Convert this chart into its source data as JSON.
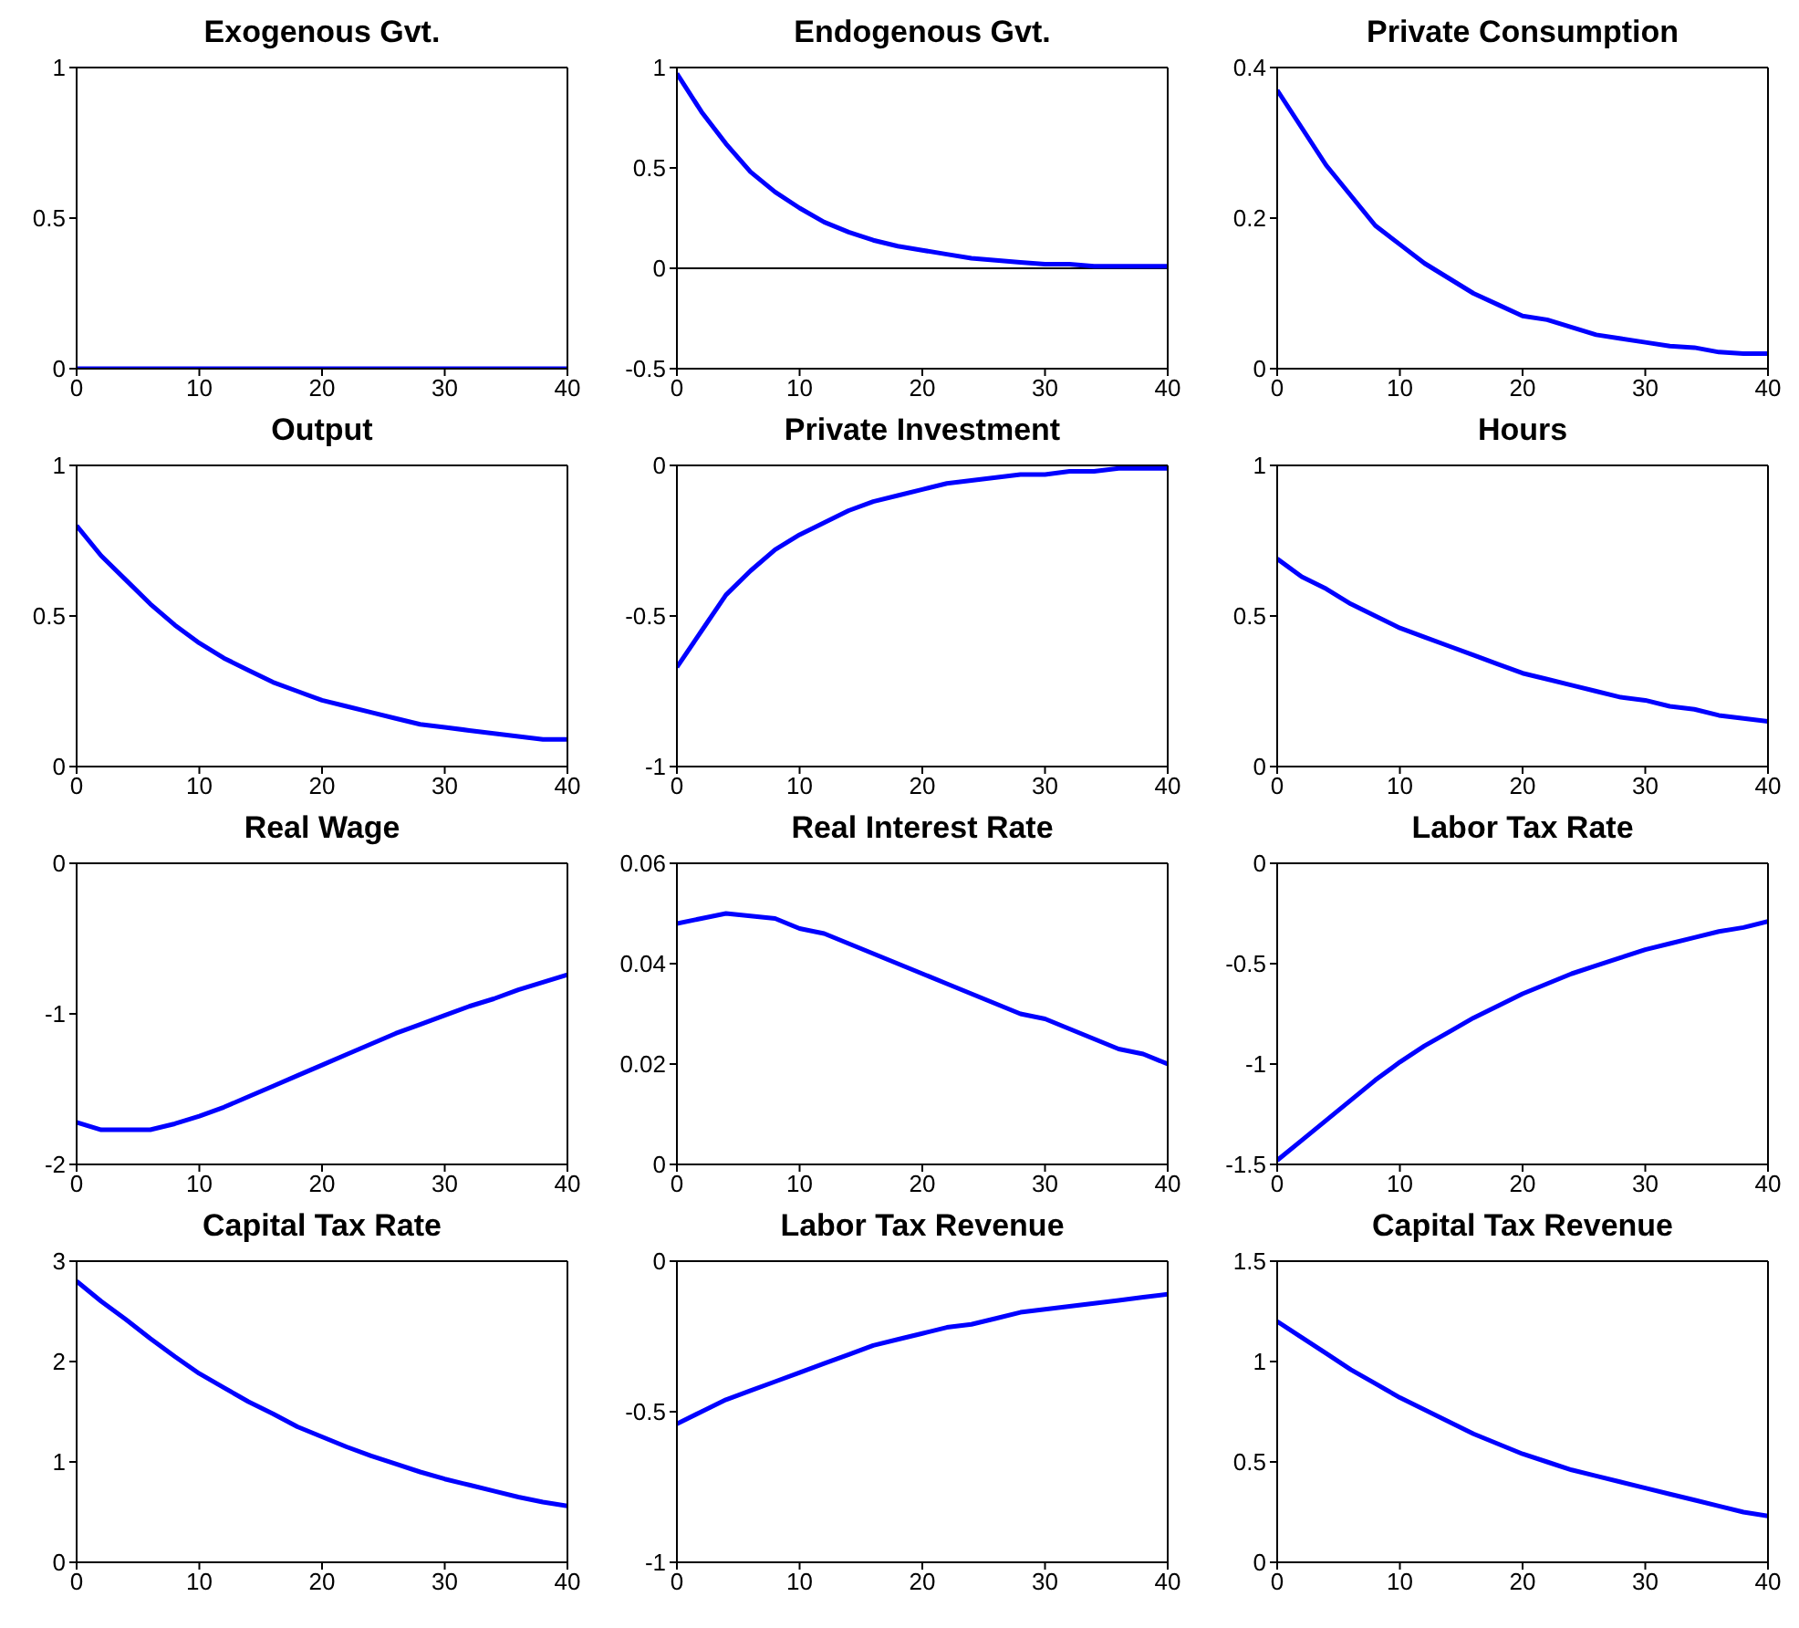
{
  "chart_data": [
    {
      "type": "line",
      "title": "Exogenous Gvt.",
      "x": [
        0,
        2,
        4,
        6,
        8,
        10,
        12,
        14,
        16,
        18,
        20,
        22,
        24,
        26,
        28,
        30,
        32,
        34,
        36,
        38,
        40
      ],
      "xlim": [
        0,
        40
      ],
      "xticks": [
        0,
        10,
        20,
        30,
        40
      ],
      "ylim": [
        0,
        1
      ],
      "yticks": [
        0,
        0.5,
        1
      ],
      "series": [
        {
          "color": "#0000ff",
          "values": [
            0,
            0,
            0,
            0,
            0,
            0,
            0,
            0,
            0,
            0,
            0,
            0,
            0,
            0,
            0,
            0,
            0,
            0,
            0,
            0,
            0
          ]
        }
      ]
    },
    {
      "type": "line",
      "title": "Endogenous Gvt.",
      "x": [
        0,
        2,
        4,
        6,
        8,
        10,
        12,
        14,
        16,
        18,
        20,
        22,
        24,
        26,
        28,
        30,
        32,
        34,
        36,
        38,
        40
      ],
      "xlim": [
        0,
        40
      ],
      "xticks": [
        0,
        10,
        20,
        30,
        40
      ],
      "ylim": [
        -0.5,
        1
      ],
      "yticks": [
        -0.5,
        0,
        0.5,
        1
      ],
      "ref_lines": [
        {
          "axis": "y",
          "value": 0,
          "color": "#000000"
        }
      ],
      "series": [
        {
          "color": "#0000ff",
          "values": [
            0.97,
            0.78,
            0.62,
            0.48,
            0.38,
            0.3,
            0.23,
            0.18,
            0.14,
            0.11,
            0.09,
            0.07,
            0.05,
            0.04,
            0.03,
            0.02,
            0.02,
            0.01,
            0.01,
            0.01,
            0.01
          ]
        }
      ]
    },
    {
      "type": "line",
      "title": "Private Consumption",
      "x": [
        0,
        2,
        4,
        6,
        8,
        10,
        12,
        14,
        16,
        18,
        20,
        22,
        24,
        26,
        28,
        30,
        32,
        34,
        36,
        38,
        40
      ],
      "xlim": [
        0,
        40
      ],
      "xticks": [
        0,
        10,
        20,
        30,
        40
      ],
      "ylim": [
        0,
        0.4
      ],
      "yticks": [
        0,
        0.2,
        0.4
      ],
      "series": [
        {
          "color": "#0000ff",
          "values": [
            0.37,
            0.32,
            0.27,
            0.23,
            0.19,
            0.165,
            0.14,
            0.12,
            0.1,
            0.085,
            0.07,
            0.065,
            0.055,
            0.045,
            0.04,
            0.035,
            0.03,
            0.028,
            0.022,
            0.02,
            0.02
          ]
        }
      ]
    },
    {
      "type": "line",
      "title": "Output",
      "x": [
        0,
        2,
        4,
        6,
        8,
        10,
        12,
        14,
        16,
        18,
        20,
        22,
        24,
        26,
        28,
        30,
        32,
        34,
        36,
        38,
        40
      ],
      "xlim": [
        0,
        40
      ],
      "xticks": [
        0,
        10,
        20,
        30,
        40
      ],
      "ylim": [
        0,
        1
      ],
      "yticks": [
        0,
        0.5,
        1
      ],
      "series": [
        {
          "color": "#0000ff",
          "values": [
            0.8,
            0.7,
            0.62,
            0.54,
            0.47,
            0.41,
            0.36,
            0.32,
            0.28,
            0.25,
            0.22,
            0.2,
            0.18,
            0.16,
            0.14,
            0.13,
            0.12,
            0.11,
            0.1,
            0.09,
            0.09
          ]
        }
      ]
    },
    {
      "type": "line",
      "title": "Private Investment",
      "x": [
        0,
        2,
        4,
        6,
        8,
        10,
        12,
        14,
        16,
        18,
        20,
        22,
        24,
        26,
        28,
        30,
        32,
        34,
        36,
        38,
        40
      ],
      "xlim": [
        0,
        40
      ],
      "xticks": [
        0,
        10,
        20,
        30,
        40
      ],
      "ylim": [
        -1,
        0
      ],
      "yticks": [
        -1,
        -0.5,
        0
      ],
      "series": [
        {
          "color": "#0000ff",
          "values": [
            -0.67,
            -0.55,
            -0.43,
            -0.35,
            -0.28,
            -0.23,
            -0.19,
            -0.15,
            -0.12,
            -0.1,
            -0.08,
            -0.06,
            -0.05,
            -0.04,
            -0.03,
            -0.03,
            -0.02,
            -0.02,
            -0.01,
            -0.01,
            -0.01
          ]
        }
      ]
    },
    {
      "type": "line",
      "title": "Hours",
      "x": [
        0,
        2,
        4,
        6,
        8,
        10,
        12,
        14,
        16,
        18,
        20,
        22,
        24,
        26,
        28,
        30,
        32,
        34,
        36,
        38,
        40
      ],
      "xlim": [
        0,
        40
      ],
      "xticks": [
        0,
        10,
        20,
        30,
        40
      ],
      "ylim": [
        0,
        1
      ],
      "yticks": [
        0,
        0.5,
        1
      ],
      "series": [
        {
          "color": "#0000ff",
          "values": [
            0.69,
            0.63,
            0.59,
            0.54,
            0.5,
            0.46,
            0.43,
            0.4,
            0.37,
            0.34,
            0.31,
            0.29,
            0.27,
            0.25,
            0.23,
            0.22,
            0.2,
            0.19,
            0.17,
            0.16,
            0.15
          ]
        }
      ]
    },
    {
      "type": "line",
      "title": "Real Wage",
      "x": [
        0,
        2,
        4,
        6,
        8,
        10,
        12,
        14,
        16,
        18,
        20,
        22,
        24,
        26,
        28,
        30,
        32,
        34,
        36,
        38,
        40
      ],
      "xlim": [
        0,
        40
      ],
      "xticks": [
        0,
        10,
        20,
        30,
        40
      ],
      "ylim": [
        -2,
        0
      ],
      "yticks": [
        -2,
        -1,
        0
      ],
      "series": [
        {
          "color": "#0000ff",
          "values": [
            -1.72,
            -1.77,
            -1.77,
            -1.77,
            -1.73,
            -1.68,
            -1.62,
            -1.55,
            -1.48,
            -1.41,
            -1.34,
            -1.27,
            -1.2,
            -1.13,
            -1.07,
            -1.01,
            -0.95,
            -0.9,
            -0.84,
            -0.79,
            -0.74
          ]
        }
      ]
    },
    {
      "type": "line",
      "title": "Real Interest Rate",
      "x": [
        0,
        2,
        4,
        6,
        8,
        10,
        12,
        14,
        16,
        18,
        20,
        22,
        24,
        26,
        28,
        30,
        32,
        34,
        36,
        38,
        40
      ],
      "xlim": [
        0,
        40
      ],
      "xticks": [
        0,
        10,
        20,
        30,
        40
      ],
      "ylim": [
        0,
        0.06
      ],
      "yticks": [
        0,
        0.02,
        0.04,
        0.06
      ],
      "series": [
        {
          "color": "#0000ff",
          "values": [
            0.048,
            0.049,
            0.05,
            0.0495,
            0.049,
            0.047,
            0.046,
            0.044,
            0.042,
            0.04,
            0.038,
            0.036,
            0.034,
            0.032,
            0.03,
            0.029,
            0.027,
            0.025,
            0.023,
            0.022,
            0.02
          ]
        }
      ]
    },
    {
      "type": "line",
      "title": "Labor Tax Rate",
      "x": [
        0,
        2,
        4,
        6,
        8,
        10,
        12,
        14,
        16,
        18,
        20,
        22,
        24,
        26,
        28,
        30,
        32,
        34,
        36,
        38,
        40
      ],
      "xlim": [
        0,
        40
      ],
      "xticks": [
        0,
        10,
        20,
        30,
        40
      ],
      "ylim": [
        -1.5,
        0
      ],
      "yticks": [
        -1.5,
        -1,
        -0.5,
        0
      ],
      "series": [
        {
          "color": "#0000ff",
          "values": [
            -1.48,
            -1.38,
            -1.28,
            -1.18,
            -1.08,
            -0.99,
            -0.91,
            -0.84,
            -0.77,
            -0.71,
            -0.65,
            -0.6,
            -0.55,
            -0.51,
            -0.47,
            -0.43,
            -0.4,
            -0.37,
            -0.34,
            -0.32,
            -0.29
          ]
        }
      ]
    },
    {
      "type": "line",
      "title": "Capital Tax Rate",
      "x": [
        0,
        2,
        4,
        6,
        8,
        10,
        12,
        14,
        16,
        18,
        20,
        22,
        24,
        26,
        28,
        30,
        32,
        34,
        36,
        38,
        40
      ],
      "xlim": [
        0,
        40
      ],
      "xticks": [
        0,
        10,
        20,
        30,
        40
      ],
      "ylim": [
        0,
        3
      ],
      "yticks": [
        0,
        1,
        2,
        3
      ],
      "series": [
        {
          "color": "#0000ff",
          "values": [
            2.8,
            2.6,
            2.42,
            2.23,
            2.05,
            1.88,
            1.74,
            1.6,
            1.48,
            1.35,
            1.25,
            1.15,
            1.06,
            0.98,
            0.9,
            0.83,
            0.77,
            0.71,
            0.65,
            0.6,
            0.56
          ]
        }
      ]
    },
    {
      "type": "line",
      "title": "Labor Tax Revenue",
      "x": [
        0,
        2,
        4,
        6,
        8,
        10,
        12,
        14,
        16,
        18,
        20,
        22,
        24,
        26,
        28,
        30,
        32,
        34,
        36,
        38,
        40
      ],
      "xlim": [
        0,
        40
      ],
      "xticks": [
        0,
        10,
        20,
        30,
        40
      ],
      "ylim": [
        -1,
        0
      ],
      "yticks": [
        -1,
        -0.5,
        0
      ],
      "series": [
        {
          "color": "#0000ff",
          "values": [
            -0.54,
            -0.5,
            -0.46,
            -0.43,
            -0.4,
            -0.37,
            -0.34,
            -0.31,
            -0.28,
            -0.26,
            -0.24,
            -0.22,
            -0.21,
            -0.19,
            -0.17,
            -0.16,
            -0.15,
            -0.14,
            -0.13,
            -0.12,
            -0.11
          ]
        }
      ]
    },
    {
      "type": "line",
      "title": "Capital Tax Revenue",
      "x": [
        0,
        2,
        4,
        6,
        8,
        10,
        12,
        14,
        16,
        18,
        20,
        22,
        24,
        26,
        28,
        30,
        32,
        34,
        36,
        38,
        40
      ],
      "xlim": [
        0,
        40
      ],
      "xticks": [
        0,
        10,
        20,
        30,
        40
      ],
      "ylim": [
        0,
        1.5
      ],
      "yticks": [
        0,
        0.5,
        1,
        1.5
      ],
      "series": [
        {
          "color": "#0000ff",
          "values": [
            1.2,
            1.12,
            1.04,
            0.96,
            0.89,
            0.82,
            0.76,
            0.7,
            0.64,
            0.59,
            0.54,
            0.5,
            0.46,
            0.43,
            0.4,
            0.37,
            0.34,
            0.31,
            0.28,
            0.25,
            0.23
          ]
        }
      ]
    }
  ]
}
